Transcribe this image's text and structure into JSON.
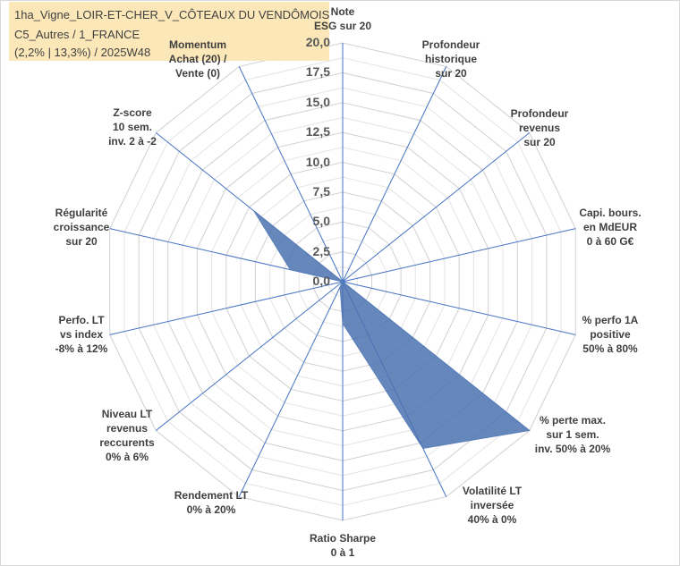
{
  "chart_data": {
    "type": "radar",
    "title_lines": [
      "1ha_Vigne_LOIR-ET-CHER_V_CÔTEAUX DU VENDÔMOIS",
      "C5_Autres / 1_FRANCE",
      "(2,2% | 13,3%) / 2025W48"
    ],
    "radial_ticks": [
      "0,0",
      "2,5",
      "5,0",
      "7,5",
      "10,0",
      "12,5",
      "15,0",
      "17,5",
      "20,0"
    ],
    "rmin": 0,
    "rmax": 20,
    "categories": [
      "Note\nESG sur 20",
      "Profondeur\nhistorique\nsur 20",
      "Profondeur\nrevenus\nsur 20",
      "Capi. bours.\nen MdEUR\n0 à 60 G€",
      "% perfo 1A\npositive\n50% à 80%",
      "% perte max.\nsur 1 sem.\ninv. 50% à 20%",
      "Volatilité LT\ninversée\n40% à 0%",
      "Ratio Sharpe\n0 à 1",
      "Rendement LT\n0% à 20%",
      "Niveau LT\nrevenus\nreccurents\n0% à 6%",
      "Perfo. LT\nvs index\n-8% à 12%",
      "Régularité\ncroissance\nsur 20",
      "Z-score\n10 sem.\ninv. 2 à -2",
      "Momentum\nAchat (20) /\nVente (0)"
    ],
    "series": [
      {
        "values": [
          0,
          0,
          0,
          0,
          0,
          20,
          15.5,
          3.5,
          0.5,
          0,
          0,
          4.5,
          9.5,
          0
        ],
        "color": "#4a72b0"
      }
    ],
    "grid": true
  }
}
